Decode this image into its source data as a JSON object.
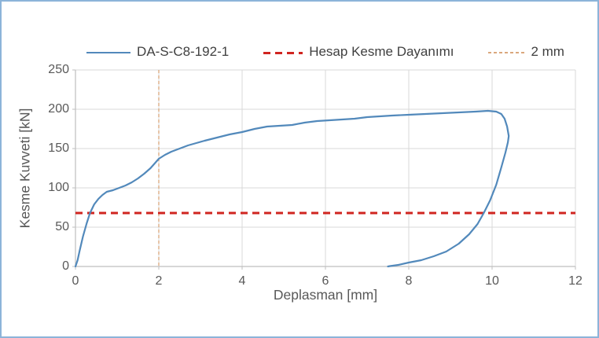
{
  "frame": {
    "border_color": "#8CB4D9",
    "background": "#FFFFFF"
  },
  "legend": {
    "position": "top-center",
    "items": [
      {
        "label": "DA-S-C8-192-1",
        "swatch": "solid-line",
        "color": "#5289BB"
      },
      {
        "label": "Hesap Kesme Dayanımı",
        "swatch": "dashed-line",
        "color": "#D02520"
      },
      {
        "label": "2 mm",
        "swatch": "dotted-line",
        "color": "#DAA87D"
      }
    ]
  },
  "chart_data": {
    "type": "line",
    "title": "",
    "xlabel": "Deplasman [mm]",
    "ylabel": "Kesme Kuvveti [kN]",
    "xlim": [
      0,
      12
    ],
    "ylim": [
      0,
      250
    ],
    "xticks": [
      0,
      2,
      4,
      6,
      8,
      10,
      12
    ],
    "yticks": [
      0,
      50,
      100,
      150,
      200,
      250
    ],
    "grid": true,
    "legend_position": "top",
    "colors": {
      "grid": "#D9D9D9",
      "axis": "#BFBFBF",
      "tick_text": "#595959"
    },
    "series": [
      {
        "name": "DA-S-C8-192-1",
        "type": "line",
        "style": "solid",
        "color": "#5289BB",
        "description": "hysteresis loading-unloading curve, peak ~198 kN near 10 mm, unloads back to 0 at ~7.5 mm",
        "points": [
          [
            0,
            0
          ],
          [
            0.05,
            8
          ],
          [
            0.1,
            20
          ],
          [
            0.18,
            38
          ],
          [
            0.27,
            55
          ],
          [
            0.35,
            68
          ],
          [
            0.45,
            79
          ],
          [
            0.55,
            86
          ],
          [
            0.65,
            91
          ],
          [
            0.75,
            95
          ],
          [
            0.9,
            97
          ],
          [
            1.05,
            100
          ],
          [
            1.2,
            103
          ],
          [
            1.35,
            107
          ],
          [
            1.5,
            112
          ],
          [
            1.65,
            118
          ],
          [
            1.8,
            125
          ],
          [
            2.0,
            137
          ],
          [
            2.15,
            142
          ],
          [
            2.3,
            146
          ],
          [
            2.5,
            150
          ],
          [
            2.7,
            154
          ],
          [
            2.9,
            157
          ],
          [
            3.1,
            160
          ],
          [
            3.4,
            164
          ],
          [
            3.7,
            168
          ],
          [
            4.0,
            171
          ],
          [
            4.3,
            175
          ],
          [
            4.6,
            178
          ],
          [
            4.9,
            179
          ],
          [
            5.2,
            180
          ],
          [
            5.5,
            183
          ],
          [
            5.8,
            185
          ],
          [
            6.1,
            186
          ],
          [
            6.4,
            187
          ],
          [
            6.7,
            188
          ],
          [
            7.0,
            190
          ],
          [
            7.3,
            191
          ],
          [
            7.6,
            192
          ],
          [
            8.0,
            193
          ],
          [
            8.4,
            194
          ],
          [
            8.8,
            195
          ],
          [
            9.2,
            196
          ],
          [
            9.6,
            197
          ],
          [
            9.9,
            198
          ],
          [
            10.1,
            197
          ],
          [
            10.22,
            194
          ],
          [
            10.3,
            188
          ],
          [
            10.36,
            178
          ],
          [
            10.4,
            166
          ],
          [
            10.38,
            158
          ],
          [
            10.32,
            145
          ],
          [
            10.22,
            126
          ],
          [
            10.1,
            104
          ],
          [
            9.95,
            84
          ],
          [
            9.8,
            68
          ],
          [
            9.65,
            54
          ],
          [
            9.45,
            41
          ],
          [
            9.2,
            29
          ],
          [
            8.9,
            19
          ],
          [
            8.6,
            13
          ],
          [
            8.3,
            8
          ],
          [
            8.0,
            5
          ],
          [
            7.75,
            2
          ],
          [
            7.55,
            0.5
          ],
          [
            7.5,
            0
          ]
        ]
      },
      {
        "name": "Hesap Kesme Dayanımı",
        "type": "hline",
        "style": "dashed",
        "color": "#D02520",
        "y": 68
      },
      {
        "name": "2 mm",
        "type": "vline",
        "style": "dashed",
        "color": "#DAA87D",
        "x": 2
      }
    ]
  }
}
